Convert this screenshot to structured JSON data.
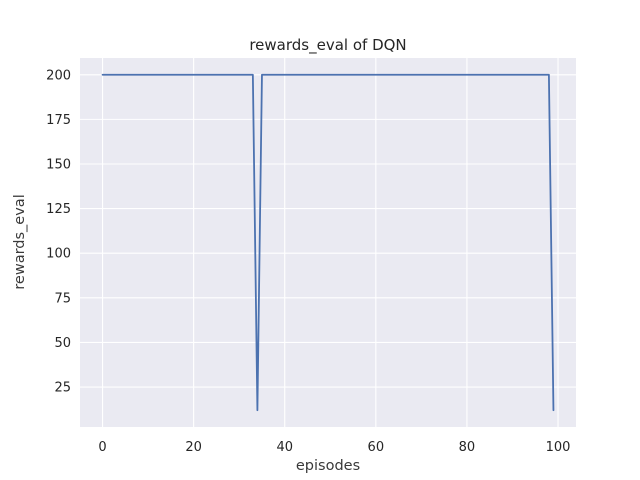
{
  "figure": {
    "background_color": "#FFFFFF"
  },
  "chart_data": {
    "type": "line",
    "title": "rewards_eval of DQN",
    "xlabel": "episodes",
    "ylabel": "rewards_eval",
    "style": "seaborn-darkgrid",
    "grid": true,
    "legend": false,
    "plot_bg_color": "#EAEAF2",
    "grid_color": "#FFFFFF",
    "line_color": "#4C72B0",
    "text_color": "#262626",
    "x_ticks": [
      0,
      20,
      40,
      60,
      80,
      100
    ],
    "y_ticks": [
      25,
      50,
      75,
      100,
      125,
      150,
      175,
      200
    ],
    "xlim": [
      -4.95,
      103.95
    ],
    "ylim": [
      2.6,
      209.4
    ],
    "x": [
      0,
      1,
      2,
      3,
      4,
      5,
      6,
      7,
      8,
      9,
      10,
      11,
      12,
      13,
      14,
      15,
      16,
      17,
      18,
      19,
      20,
      21,
      22,
      23,
      24,
      25,
      26,
      27,
      28,
      29,
      30,
      31,
      32,
      33,
      34,
      35,
      36,
      37,
      38,
      39,
      40,
      41,
      42,
      43,
      44,
      45,
      46,
      47,
      48,
      49,
      50,
      51,
      52,
      53,
      54,
      55,
      56,
      57,
      58,
      59,
      60,
      61,
      62,
      63,
      64,
      65,
      66,
      67,
      68,
      69,
      70,
      71,
      72,
      73,
      74,
      75,
      76,
      77,
      78,
      79,
      80,
      81,
      82,
      83,
      84,
      85,
      86,
      87,
      88,
      89,
      90,
      91,
      92,
      93,
      94,
      95,
      96,
      97,
      98,
      99
    ],
    "series": [
      {
        "name": "rewards_eval",
        "values": [
          200,
          200,
          200,
          200,
          200,
          200,
          200,
          200,
          200,
          200,
          200,
          200,
          200,
          200,
          200,
          200,
          200,
          200,
          200,
          200,
          200,
          200,
          200,
          200,
          200,
          200,
          200,
          200,
          200,
          200,
          200,
          200,
          200,
          200,
          12,
          200,
          200,
          200,
          200,
          200,
          200,
          200,
          200,
          200,
          200,
          200,
          200,
          200,
          200,
          200,
          200,
          200,
          200,
          200,
          200,
          200,
          200,
          200,
          200,
          200,
          200,
          200,
          200,
          200,
          200,
          200,
          200,
          200,
          200,
          200,
          200,
          200,
          200,
          200,
          200,
          200,
          200,
          200,
          200,
          200,
          200,
          200,
          200,
          200,
          200,
          200,
          200,
          200,
          200,
          200,
          200,
          200,
          200,
          200,
          200,
          200,
          200,
          200,
          200,
          12
        ]
      }
    ]
  }
}
